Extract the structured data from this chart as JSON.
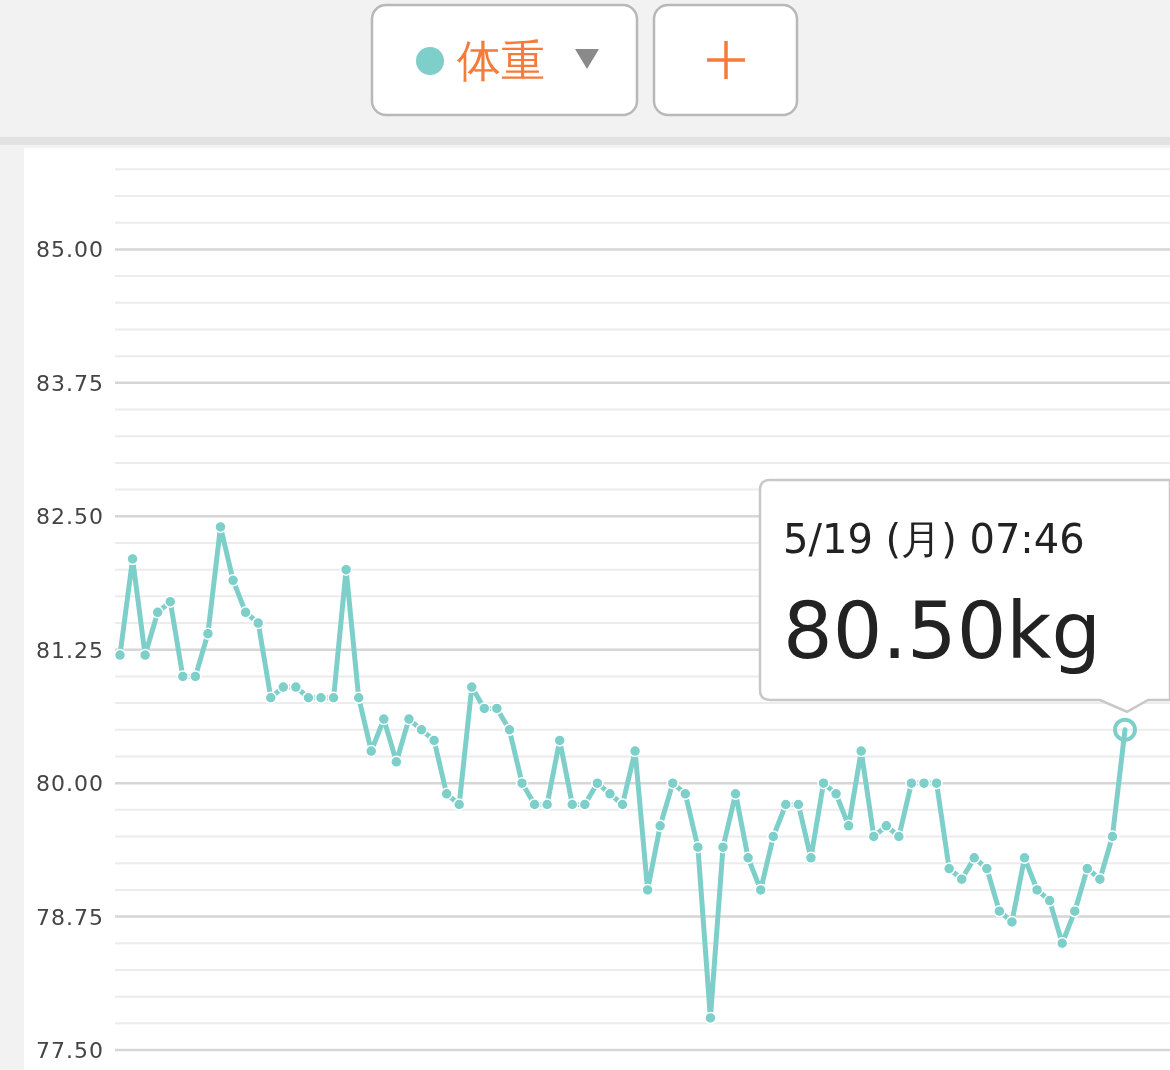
{
  "chart_data": {
    "type": "line",
    "legend": "top",
    "grid": "y",
    "marker": "circle",
    "line_style": "solid",
    "tick_labels": "y",
    "categories": [
      null,
      null,
      null,
      null,
      null,
      null,
      null,
      null,
      null,
      null,
      null,
      null,
      null,
      null,
      null,
      null,
      null,
      null,
      null,
      null,
      null,
      null,
      null,
      null,
      null,
      null,
      null,
      null,
      null,
      null,
      null,
      null,
      null,
      null,
      null,
      null,
      null,
      null,
      null,
      null,
      null,
      null,
      null,
      null,
      null,
      null,
      null,
      null,
      null,
      null,
      null,
      null,
      null,
      null,
      null,
      null,
      null,
      null,
      null,
      null,
      null,
      null,
      null,
      null,
      null,
      null,
      null,
      null,
      null,
      null,
      null,
      null,
      null,
      null,
      null,
      null,
      null,
      null,
      null,
      null,
      null
    ],
    "series": [
      {
        "name": "体重",
        "color": "#7ecfca",
        "values": [
          81.2,
          82.1,
          81.2,
          81.6,
          81.7,
          81.0,
          81.0,
          81.4,
          82.4,
          81.9,
          81.6,
          81.5,
          80.8,
          80.9,
          80.9,
          80.8,
          80.8,
          80.8,
          82.0,
          80.8,
          80.3,
          80.6,
          80.2,
          80.6,
          80.5,
          80.4,
          79.9,
          79.8,
          80.9,
          80.7,
          80.7,
          80.5,
          80.0,
          79.8,
          79.8,
          80.4,
          79.8,
          79.8,
          80.0,
          79.9,
          79.8,
          80.3,
          79.0,
          79.6,
          80.0,
          79.9,
          79.4,
          77.8,
          79.4,
          79.9,
          79.3,
          79.0,
          79.5,
          79.8,
          79.8,
          79.3,
          80.0,
          79.9,
          79.6,
          80.3,
          79.5,
          79.6,
          79.5,
          80.0,
          80.0,
          80.0,
          79.2,
          79.1,
          79.3,
          79.2,
          78.8,
          78.7,
          79.3,
          79.0,
          78.9,
          78.5,
          78.8,
          79.2,
          79.1,
          79.5,
          80.5
        ]
      }
    ],
    "ylim": [
      77.5,
      85.95
    ],
    "yticks": [
      {
        "value": 77.5,
        "label": "77.50"
      },
      {
        "value": 77.75,
        "label": null
      },
      {
        "value": 78.0,
        "label": null
      },
      {
        "value": 78.25,
        "label": null
      },
      {
        "value": 78.5,
        "label": null
      },
      {
        "value": 78.75,
        "label": "78.75"
      },
      {
        "value": 79.0,
        "label": null
      },
      {
        "value": 79.25,
        "label": null
      },
      {
        "value": 79.5,
        "label": null
      },
      {
        "value": 79.75,
        "label": null
      },
      {
        "value": 80.0,
        "label": "80.00"
      },
      {
        "value": 80.25,
        "label": null
      },
      {
        "value": 80.5,
        "label": null
      },
      {
        "value": 80.75,
        "label": null
      },
      {
        "value": 81.0,
        "label": null
      },
      {
        "value": 81.25,
        "label": "81.25"
      },
      {
        "value": 81.5,
        "label": null
      },
      {
        "value": 81.75,
        "label": null
      },
      {
        "value": 82.0,
        "label": null
      },
      {
        "value": 82.25,
        "label": null
      },
      {
        "value": 82.5,
        "label": "82.50"
      },
      {
        "value": 82.75,
        "label": null
      },
      {
        "value": 83.0,
        "label": null
      },
      {
        "value": 83.25,
        "label": null
      },
      {
        "value": 83.5,
        "label": null
      },
      {
        "value": 83.75,
        "label": "83.75"
      },
      {
        "value": 84.0,
        "label": null
      },
      {
        "value": 84.25,
        "label": null
      },
      {
        "value": 84.5,
        "label": null
      },
      {
        "value": 84.75,
        "label": null
      },
      {
        "value": 85.0,
        "label": "85.00"
      },
      {
        "value": 85.25,
        "label": null
      },
      {
        "value": 85.5,
        "label": null
      },
      {
        "value": 85.75,
        "label": null
      }
    ],
    "annotations": [
      "5/19 (月) 07:46",
      "80.50kg"
    ]
  }
}
